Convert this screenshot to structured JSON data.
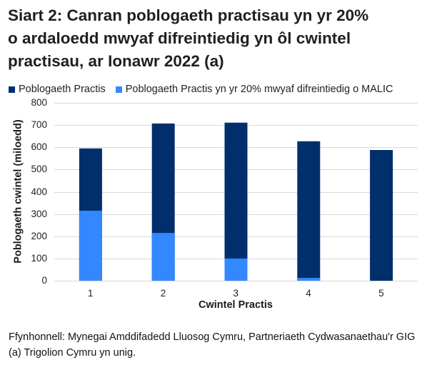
{
  "title": {
    "line1": "Siart 2: Canran poblogaeth practisau yn yr 20%",
    "line2": "o ardaloedd mwyaf difreintiedig yn ôl cwintel",
    "line3": "practisau, ar Ionawr 2022 (a)"
  },
  "legend": [
    {
      "label": "Poblogaeth Practis",
      "color": "#002F6C"
    },
    {
      "label": "Poblogaeth Practis yn yr 20% mwyaf difreintiedig o MALIC",
      "color": "#3388FF"
    }
  ],
  "axes": {
    "ylabel": "Poblogaeth cwintel (miloedd)",
    "xlabel": "Cwintel Practis",
    "yticks": [
      "0",
      "100",
      "200",
      "300",
      "400",
      "500",
      "600",
      "700",
      "800"
    ],
    "xticks": [
      "1",
      "2",
      "3",
      "4",
      "5"
    ]
  },
  "source": {
    "line1": "Ffynhonnell: Mynegai Amddifadedd Lluosog Cymru, Partneriaeth Cydwasanaethau'r GIG",
    "line2": "(a) Trigolion Cymru yn unig."
  },
  "colors": {
    "dark": "#002F6C",
    "light": "#3388FF",
    "grid": "#D9D9D9"
  },
  "chart_data": {
    "type": "bar",
    "stacked": "overlay",
    "title": "Siart 2: Canran poblogaeth practisau yn yr 20% o ardaloedd mwyaf difreintiedig yn ôl cwintel practisau, ar Ionawr 2022 (a)",
    "categories": [
      "1",
      "2",
      "3",
      "4",
      "5"
    ],
    "series": [
      {
        "name": "Poblogaeth Practis",
        "values": [
          595,
          707,
          711,
          627,
          588
        ],
        "color": "#002F6C"
      },
      {
        "name": "Poblogaeth Practis yn yr 20% mwyaf difreintiedig o MALIC",
        "values": [
          315,
          215,
          100,
          13,
          0
        ],
        "color": "#3388FF"
      }
    ],
    "xlabel": "Cwintel Practis",
    "ylabel": "Poblogaeth cwintel (miloedd)",
    "ylim": [
      0,
      800
    ],
    "yticks": [
      0,
      100,
      200,
      300,
      400,
      500,
      600,
      700,
      800
    ],
    "grid": true,
    "legend_position": "top"
  }
}
